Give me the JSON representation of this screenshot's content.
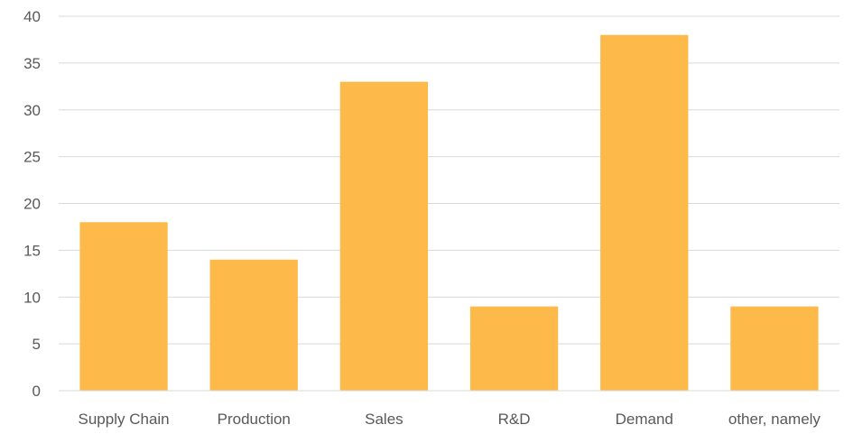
{
  "chart_data": {
    "type": "bar",
    "categories": [
      "Supply Chain",
      "Production",
      "Sales",
      "R&D",
      "Demand",
      "other, namely"
    ],
    "values": [
      18,
      14,
      33,
      9,
      38,
      9
    ],
    "title": "",
    "xlabel": "",
    "ylabel": "",
    "ylim": [
      0,
      40
    ],
    "yticks": [
      "0",
      "5",
      "10",
      "15",
      "20",
      "25",
      "30",
      "35",
      "40"
    ],
    "grid": true,
    "legend": "none",
    "colors": {
      "bar": "#FDBA4B",
      "grid": "#D9D9D9",
      "axis": "#D9D9D9",
      "text": "#595959"
    }
  }
}
